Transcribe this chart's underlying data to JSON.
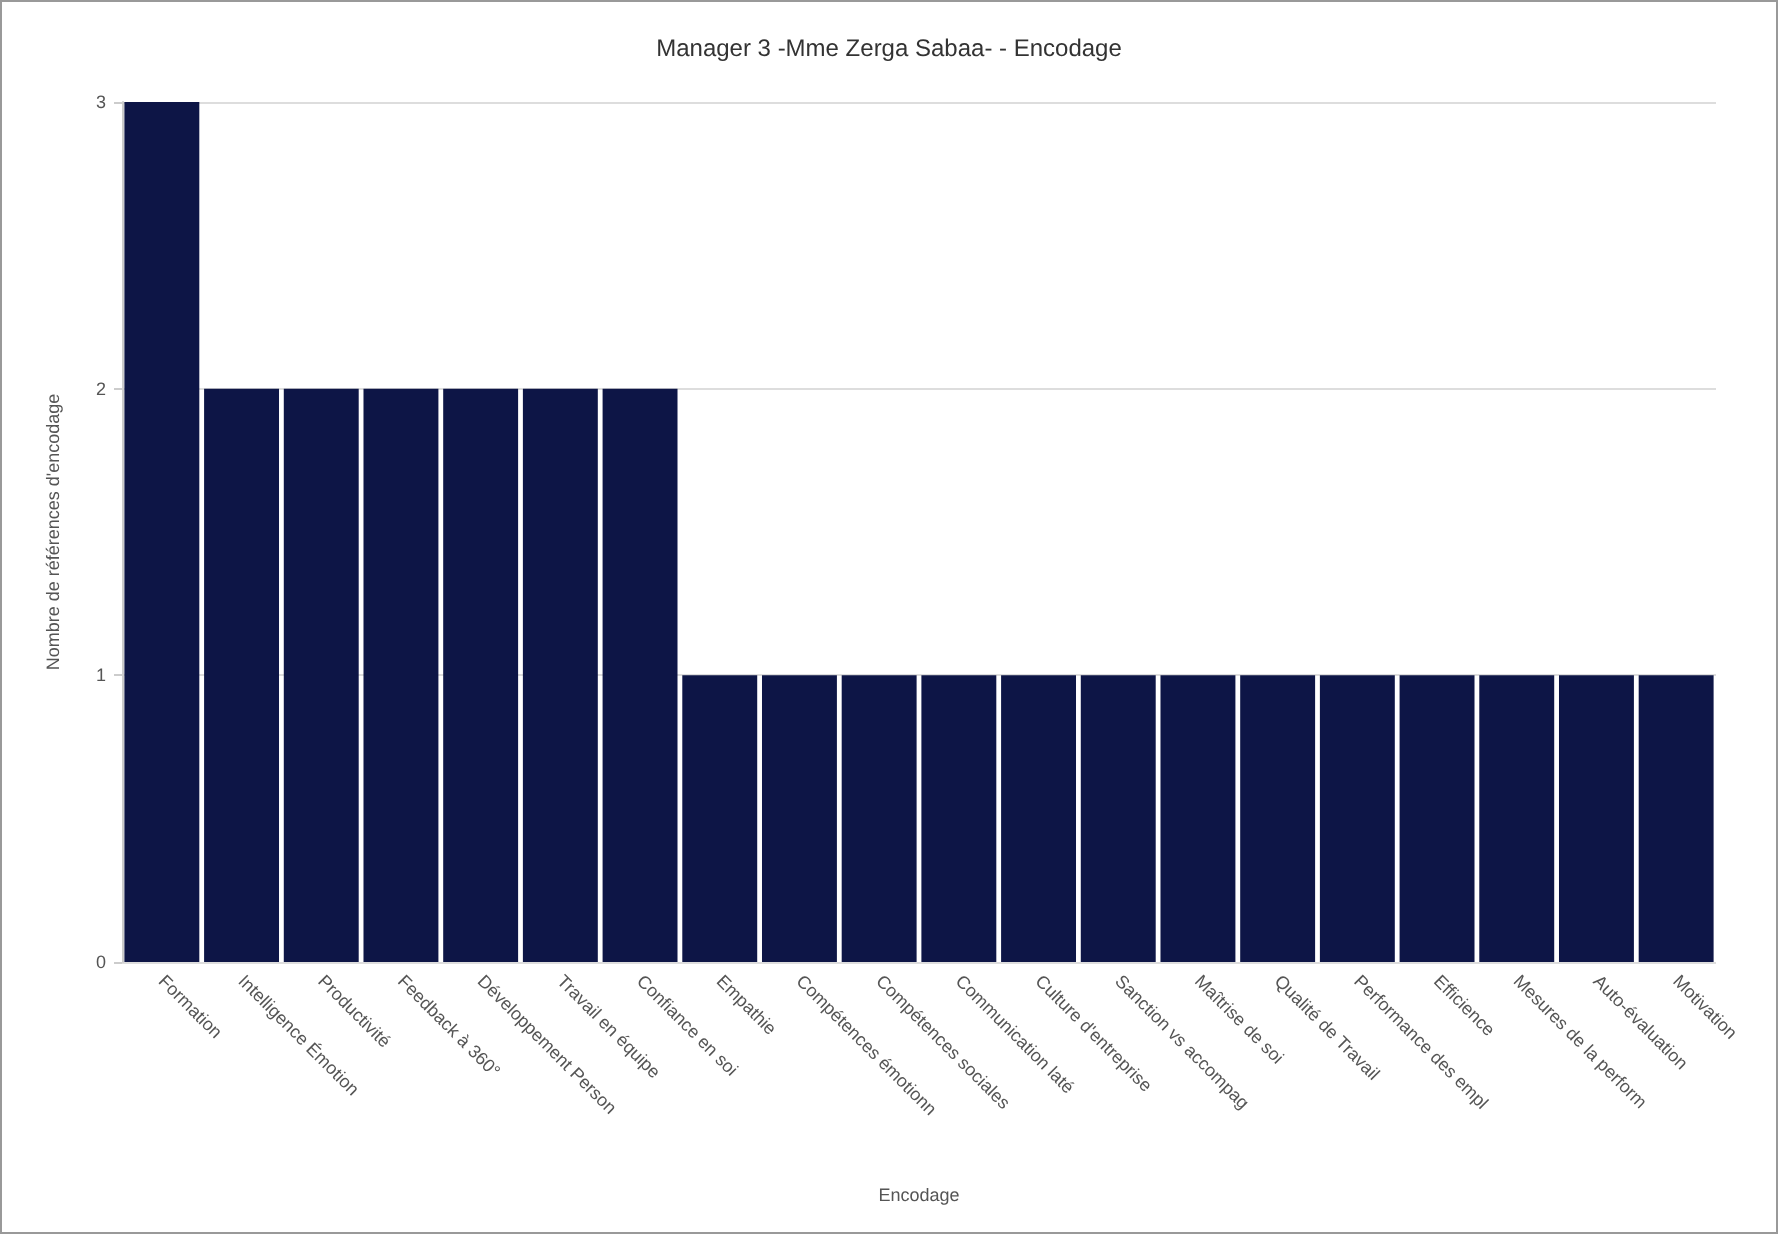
{
  "chart_data": {
    "type": "bar",
    "title": "Manager 3 -Mme Zerga Sabaa- - Encodage",
    "xlabel": "Encodage",
    "ylabel": "Nombre de références d'encodage",
    "categories": [
      "Formation",
      "Intelligence Émotion",
      "Productivité",
      "Feedback à 360°",
      "Développement Person",
      "Travail en équipe",
      "Confiance en soi",
      "Empathie",
      "Compétences émotionn",
      "Compétences sociales",
      "Communication laté",
      "Culture d'entreprise",
      "Sanction vs accompag",
      "Maîtrise de soi",
      "Qualité de Travail",
      "Performance des empl",
      "Efficience",
      "Mesures de la perform",
      "Auto-évaluation",
      "Motivation"
    ],
    "values": [
      3,
      2,
      2,
      2,
      2,
      2,
      2,
      1,
      1,
      1,
      1,
      1,
      1,
      1,
      1,
      1,
      1,
      1,
      1,
      1
    ],
    "color": "#0d1546",
    "ylim": [
      0,
      3
    ],
    "yticks": [
      0,
      1,
      2,
      3
    ],
    "grid": "y"
  }
}
